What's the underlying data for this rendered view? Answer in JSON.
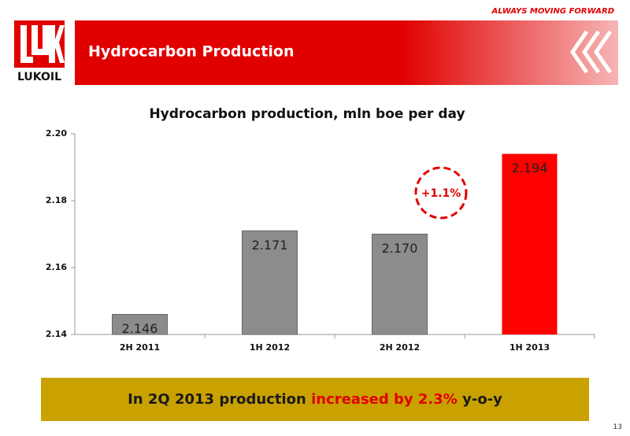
{
  "header": {
    "tagline": "ALWAYS MOVING FORWARD",
    "title": "Hydrocarbon Production",
    "logo_text": "LUKOIL"
  },
  "chart_data": {
    "type": "bar",
    "title": "Hydrocarbon production,  mln boe per day",
    "categories": [
      "2H 2011",
      "1H 2012",
      "2H 2012",
      "1H 2013"
    ],
    "values": [
      2.146,
      2.171,
      2.17,
      2.194
    ],
    "value_labels": [
      "2.146",
      "2.171",
      "2.170",
      "2.194"
    ],
    "colors": [
      "#8c8c8c",
      "#8c8c8c",
      "#8c8c8c",
      "#ff0000"
    ],
    "ylim": [
      2.14,
      2.2
    ],
    "yticks": [
      2.14,
      2.16,
      2.18,
      {
        "value": 2.2,
        "label": "2.20"
      }
    ],
    "grid": false,
    "annotation": "+1.1%"
  },
  "footer": {
    "parts": [
      "In 2Q 2013 production",
      "increased by 2.3%",
      "y-o-y"
    ]
  },
  "page_number": 13
}
